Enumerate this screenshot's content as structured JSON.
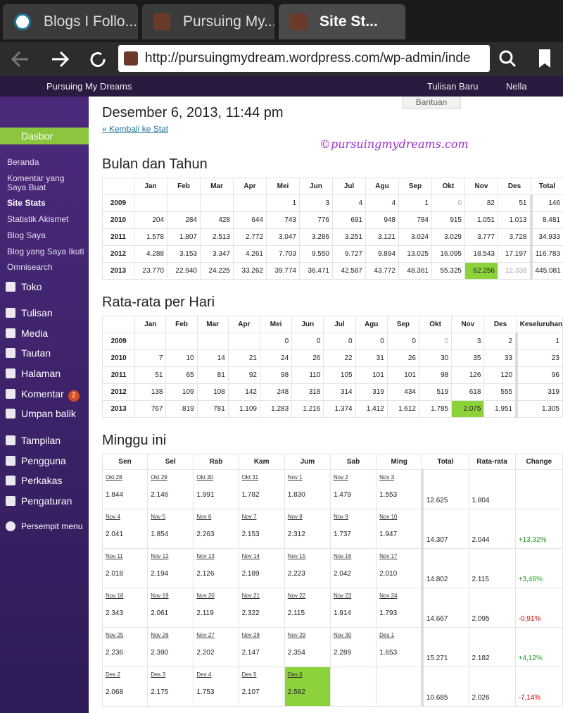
{
  "browser": {
    "tabs": [
      "Blogs I Follo...",
      "Pursuing My...",
      "Site St..."
    ],
    "url": "http://pursuingmydream.wordpress.com/wp-admin/inde"
  },
  "admin_bar": {
    "site": "Pursuing My Dreams",
    "new_post": "Tulisan Baru",
    "user": "Nella"
  },
  "menu": {
    "active": "Dasbor",
    "submenu": [
      "Beranda",
      "Komentar yang Saya Buat",
      "Site Stats",
      "Statistik Akismet",
      "Blog Saya",
      "Blog yang Saya Ikuti",
      "Omnisearch"
    ],
    "items": [
      {
        "label": "Toko"
      },
      {
        "label": "Tulisan"
      },
      {
        "label": "Media"
      },
      {
        "label": "Tautan"
      },
      {
        "label": "Halaman"
      },
      {
        "label": "Komentar",
        "badge": 2
      },
      {
        "label": "Umpan balik"
      },
      {
        "label": "Tampilan"
      },
      {
        "label": "Pengguna"
      },
      {
        "label": "Perkakas"
      },
      {
        "label": "Pengaturan"
      }
    ],
    "collapse": "Persempit menu"
  },
  "content": {
    "help": "Bantuan",
    "title": "Desember 6, 2013, 11:44 pm",
    "back_link": "« Kembali ke Stat",
    "watermark": "©pursuingmydreams.com",
    "monthly": {
      "title": "Bulan dan Tahun",
      "header": [
        null,
        "Jan",
        "Feb",
        "Mar",
        "Apr",
        "Mei",
        "Jun",
        "Jul",
        "Agu",
        "Sep",
        "Okt",
        "Nov",
        "Des",
        "Total"
      ],
      "rows": [
        [
          "2009",
          null,
          null,
          null,
          null,
          "1",
          "3",
          "4",
          "4",
          "1",
          "0",
          "82",
          "51",
          "146"
        ],
        [
          "2010",
          "204",
          "284",
          "428",
          "644",
          "743",
          "776",
          "691",
          "948",
          "784",
          "915",
          "1.051",
          "1.013",
          "8.481"
        ],
        [
          "2011",
          "1.578",
          "1.807",
          "2.513",
          "2.772",
          "3.047",
          "3.286",
          "3.251",
          "3.121",
          "3.024",
          "3.029",
          "3.777",
          "3.728",
          "34.933"
        ],
        [
          "2012",
          "4.288",
          "3.153",
          "3.347",
          "4.261",
          "7.703",
          "9.550",
          "9.727",
          "9.894",
          "13.025",
          "16.095",
          "18.543",
          "17.197",
          "116.783"
        ],
        [
          "2013",
          "23.770",
          "22.940",
          "24.225",
          "33.262",
          "39.774",
          "36.471",
          "42.587",
          "43.772",
          "48.361",
          "55.325",
          "62.256",
          "12.338",
          "445.081"
        ]
      ]
    },
    "daily": {
      "title": "Rata-rata per Hari",
      "header": [
        null,
        "Jan",
        "Feb",
        "Mar",
        "Apr",
        "Mei",
        "Jun",
        "Jul",
        "Agu",
        "Sep",
        "Okt",
        "Nov",
        "Des",
        "Keseluruhan"
      ],
      "rows": [
        [
          "2009",
          null,
          null,
          null,
          null,
          "0",
          "0",
          "0",
          "0",
          "0",
          "0",
          "3",
          "2",
          "1"
        ],
        [
          "2010",
          "7",
          "10",
          "14",
          "21",
          "24",
          "26",
          "22",
          "31",
          "26",
          "30",
          "35",
          "33",
          "23"
        ],
        [
          "2011",
          "51",
          "65",
          "81",
          "92",
          "98",
          "110",
          "105",
          "101",
          "101",
          "98",
          "126",
          "120",
          "96"
        ],
        [
          "2012",
          "138",
          "109",
          "108",
          "142",
          "248",
          "318",
          "314",
          "319",
          "434",
          "519",
          "618",
          "555",
          "319"
        ],
        [
          "2013",
          "767",
          "819",
          "781",
          "1.109",
          "1.283",
          "1.216",
          "1.374",
          "1.412",
          "1.612",
          "1.785",
          "2.075",
          "1.951",
          "1.305"
        ]
      ]
    },
    "weekly": {
      "title": "Minggu ini",
      "header": [
        "Sen",
        "Sel",
        "Rab",
        "Kam",
        "Jum",
        "Sab",
        "Ming",
        "Total",
        "Rata-rata",
        "Change"
      ],
      "rows": [
        {
          "days": [
            [
              "Okt 28",
              "1.844"
            ],
            [
              "Okt 29",
              "2.146"
            ],
            [
              "Okt 30",
              "1.991"
            ],
            [
              "Okt 31",
              "1.782"
            ],
            [
              "Nov 1",
              "1.830"
            ],
            [
              "Nov 2",
              "1.479"
            ],
            [
              "Nov 3",
              "1.553"
            ]
          ],
          "total": "12.625",
          "average": "1.804",
          "change": null
        },
        {
          "days": [
            [
              "Nov 4",
              "2.041"
            ],
            [
              "Nov 5",
              "1.854"
            ],
            [
              "Nov 6",
              "2.263"
            ],
            [
              "Nov 7",
              "2.153"
            ],
            [
              "Nov 8",
              "2.312"
            ],
            [
              "Nov 9",
              "1.737"
            ],
            [
              "Nov 10",
              "1.947"
            ]
          ],
          "total": "14.307",
          "average": "2.044",
          "change": "+13,32%"
        },
        {
          "days": [
            [
              "Nov 11",
              "2.018"
            ],
            [
              "Nov 12",
              "2.194"
            ],
            [
              "Nov 13",
              "2.126"
            ],
            [
              "Nov 14",
              "2.189"
            ],
            [
              "Nov 15",
              "2.223"
            ],
            [
              "Nov 16",
              "2.042"
            ],
            [
              "Nov 17",
              "2.010"
            ]
          ],
          "total": "14.802",
          "average": "2.115",
          "change": "+3,46%"
        },
        {
          "days": [
            [
              "Nov 18",
              "2.343"
            ],
            [
              "Nov 19",
              "2.061"
            ],
            [
              "Nov 20",
              "2.119"
            ],
            [
              "Nov 21",
              "2.322"
            ],
            [
              "Nov 22",
              "2.115"
            ],
            [
              "Nov 23",
              "1.914"
            ],
            [
              "Nov 24",
              "1.793"
            ]
          ],
          "total": "14.667",
          "average": "2.095",
          "change": "-0,91%"
        },
        {
          "days": [
            [
              "Nov 25",
              "2.236"
            ],
            [
              "Nov 26",
              "2.390"
            ],
            [
              "Nov 27",
              "2.202"
            ],
            [
              "Nov 28",
              "2.147"
            ],
            [
              "Nov 29",
              "2.354"
            ],
            [
              "Nov 30",
              "2.289"
            ],
            [
              "Des 1",
              "1.653"
            ]
          ],
          "total": "15.271",
          "average": "2.182",
          "change": "+4,12%"
        },
        {
          "days": [
            [
              "Des 2",
              "2.068"
            ],
            [
              "Des 3",
              "2.175"
            ],
            [
              "Des 4",
              "1.753"
            ],
            [
              "Des 5",
              "2.107"
            ],
            [
              "Des 6",
              "2.582"
            ]
          ],
          "total": "10.685",
          "average": "2.026",
          "change": "-7,14%"
        }
      ]
    }
  }
}
